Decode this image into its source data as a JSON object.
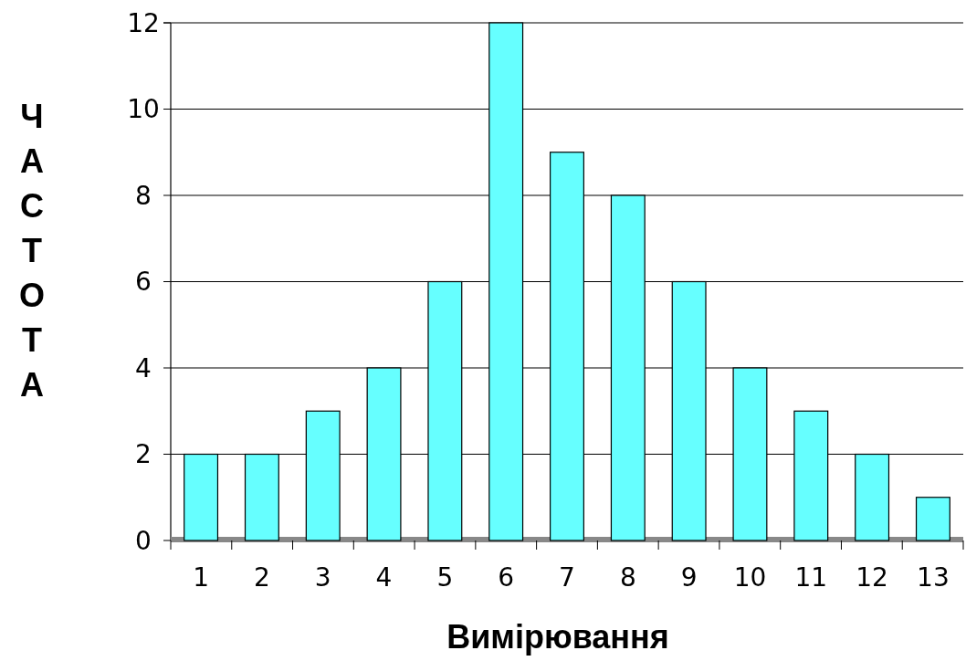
{
  "chart_data": {
    "type": "bar",
    "xlabel": "Вимірювання",
    "ylabel": "ЧАСТОТА",
    "categories": [
      "1",
      "2",
      "3",
      "4",
      "5",
      "6",
      "7",
      "8",
      "9",
      "10",
      "11",
      "12",
      "13"
    ],
    "values": [
      2,
      2,
      3,
      4,
      6,
      12,
      9,
      8,
      6,
      4,
      3,
      2,
      1
    ],
    "color": "#66ffff",
    "ylim": [
      0,
      12
    ],
    "yticks": [
      0,
      2,
      4,
      6,
      8,
      10,
      12
    ],
    "grid": "y"
  }
}
